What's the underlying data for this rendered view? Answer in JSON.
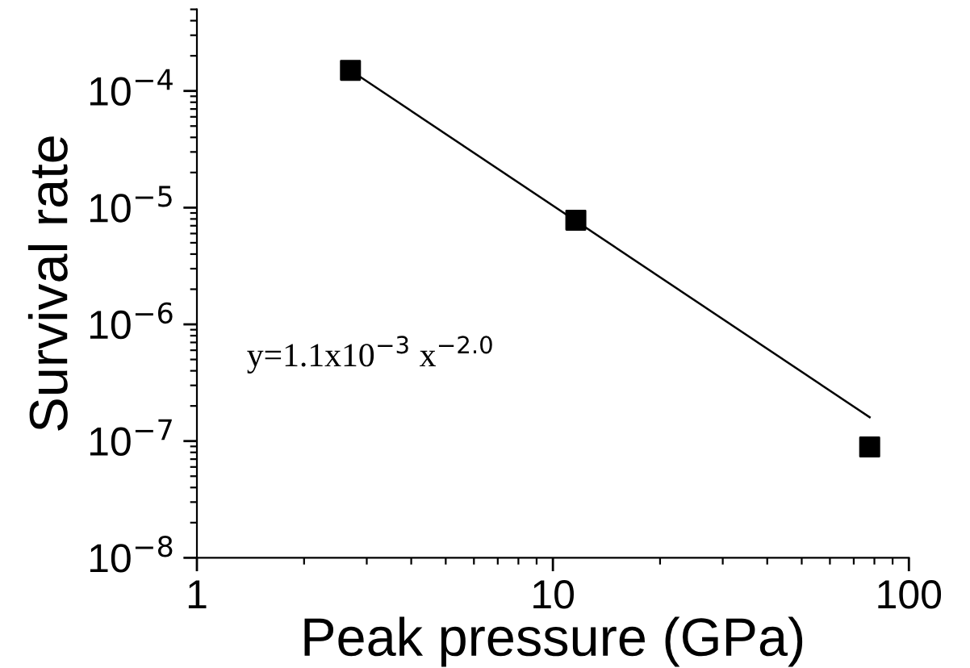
{
  "chart_data": {
    "type": "scatter",
    "xlabel": "Peak pressure (GPa)",
    "ylabel": "Survival rate",
    "log": "xy",
    "marker": "square",
    "xlim": [
      1,
      100
    ],
    "xticks": [
      1,
      10,
      100
    ],
    "ylim": [
      1e-08,
      0.0005
    ],
    "yticks": [
      {
        "value": 1e-08,
        "label": "10$^{−8}$"
      },
      {
        "value": 1e-07,
        "label": "10$^{−7}$"
      },
      {
        "value": 1e-06,
        "label": "10$^{−6}$"
      },
      {
        "value": 1e-05,
        "label": "10$^{−5}$"
      },
      {
        "value": 0.0001,
        "label": "10$^{−4}$"
      }
    ],
    "series": [
      {
        "color": "#000000",
        "x": [
          2.7,
          11.6,
          77.6
        ],
        "values": [
          0.00015,
          7.8e-06,
          8.9e-08
        ]
      },
      {
        "type": "line",
        "color": "#000000",
        "marker": "none",
        "line_style": "solid",
        "x": [
          2.7,
          77.6
        ],
        "values": [
          0.00015,
          1.6e-07
        ]
      }
    ],
    "annotations": [
      "y=1.1x10$^{−3}$ x$^{−2.0}$"
    ],
    "grid": false,
    "legend": false
  }
}
